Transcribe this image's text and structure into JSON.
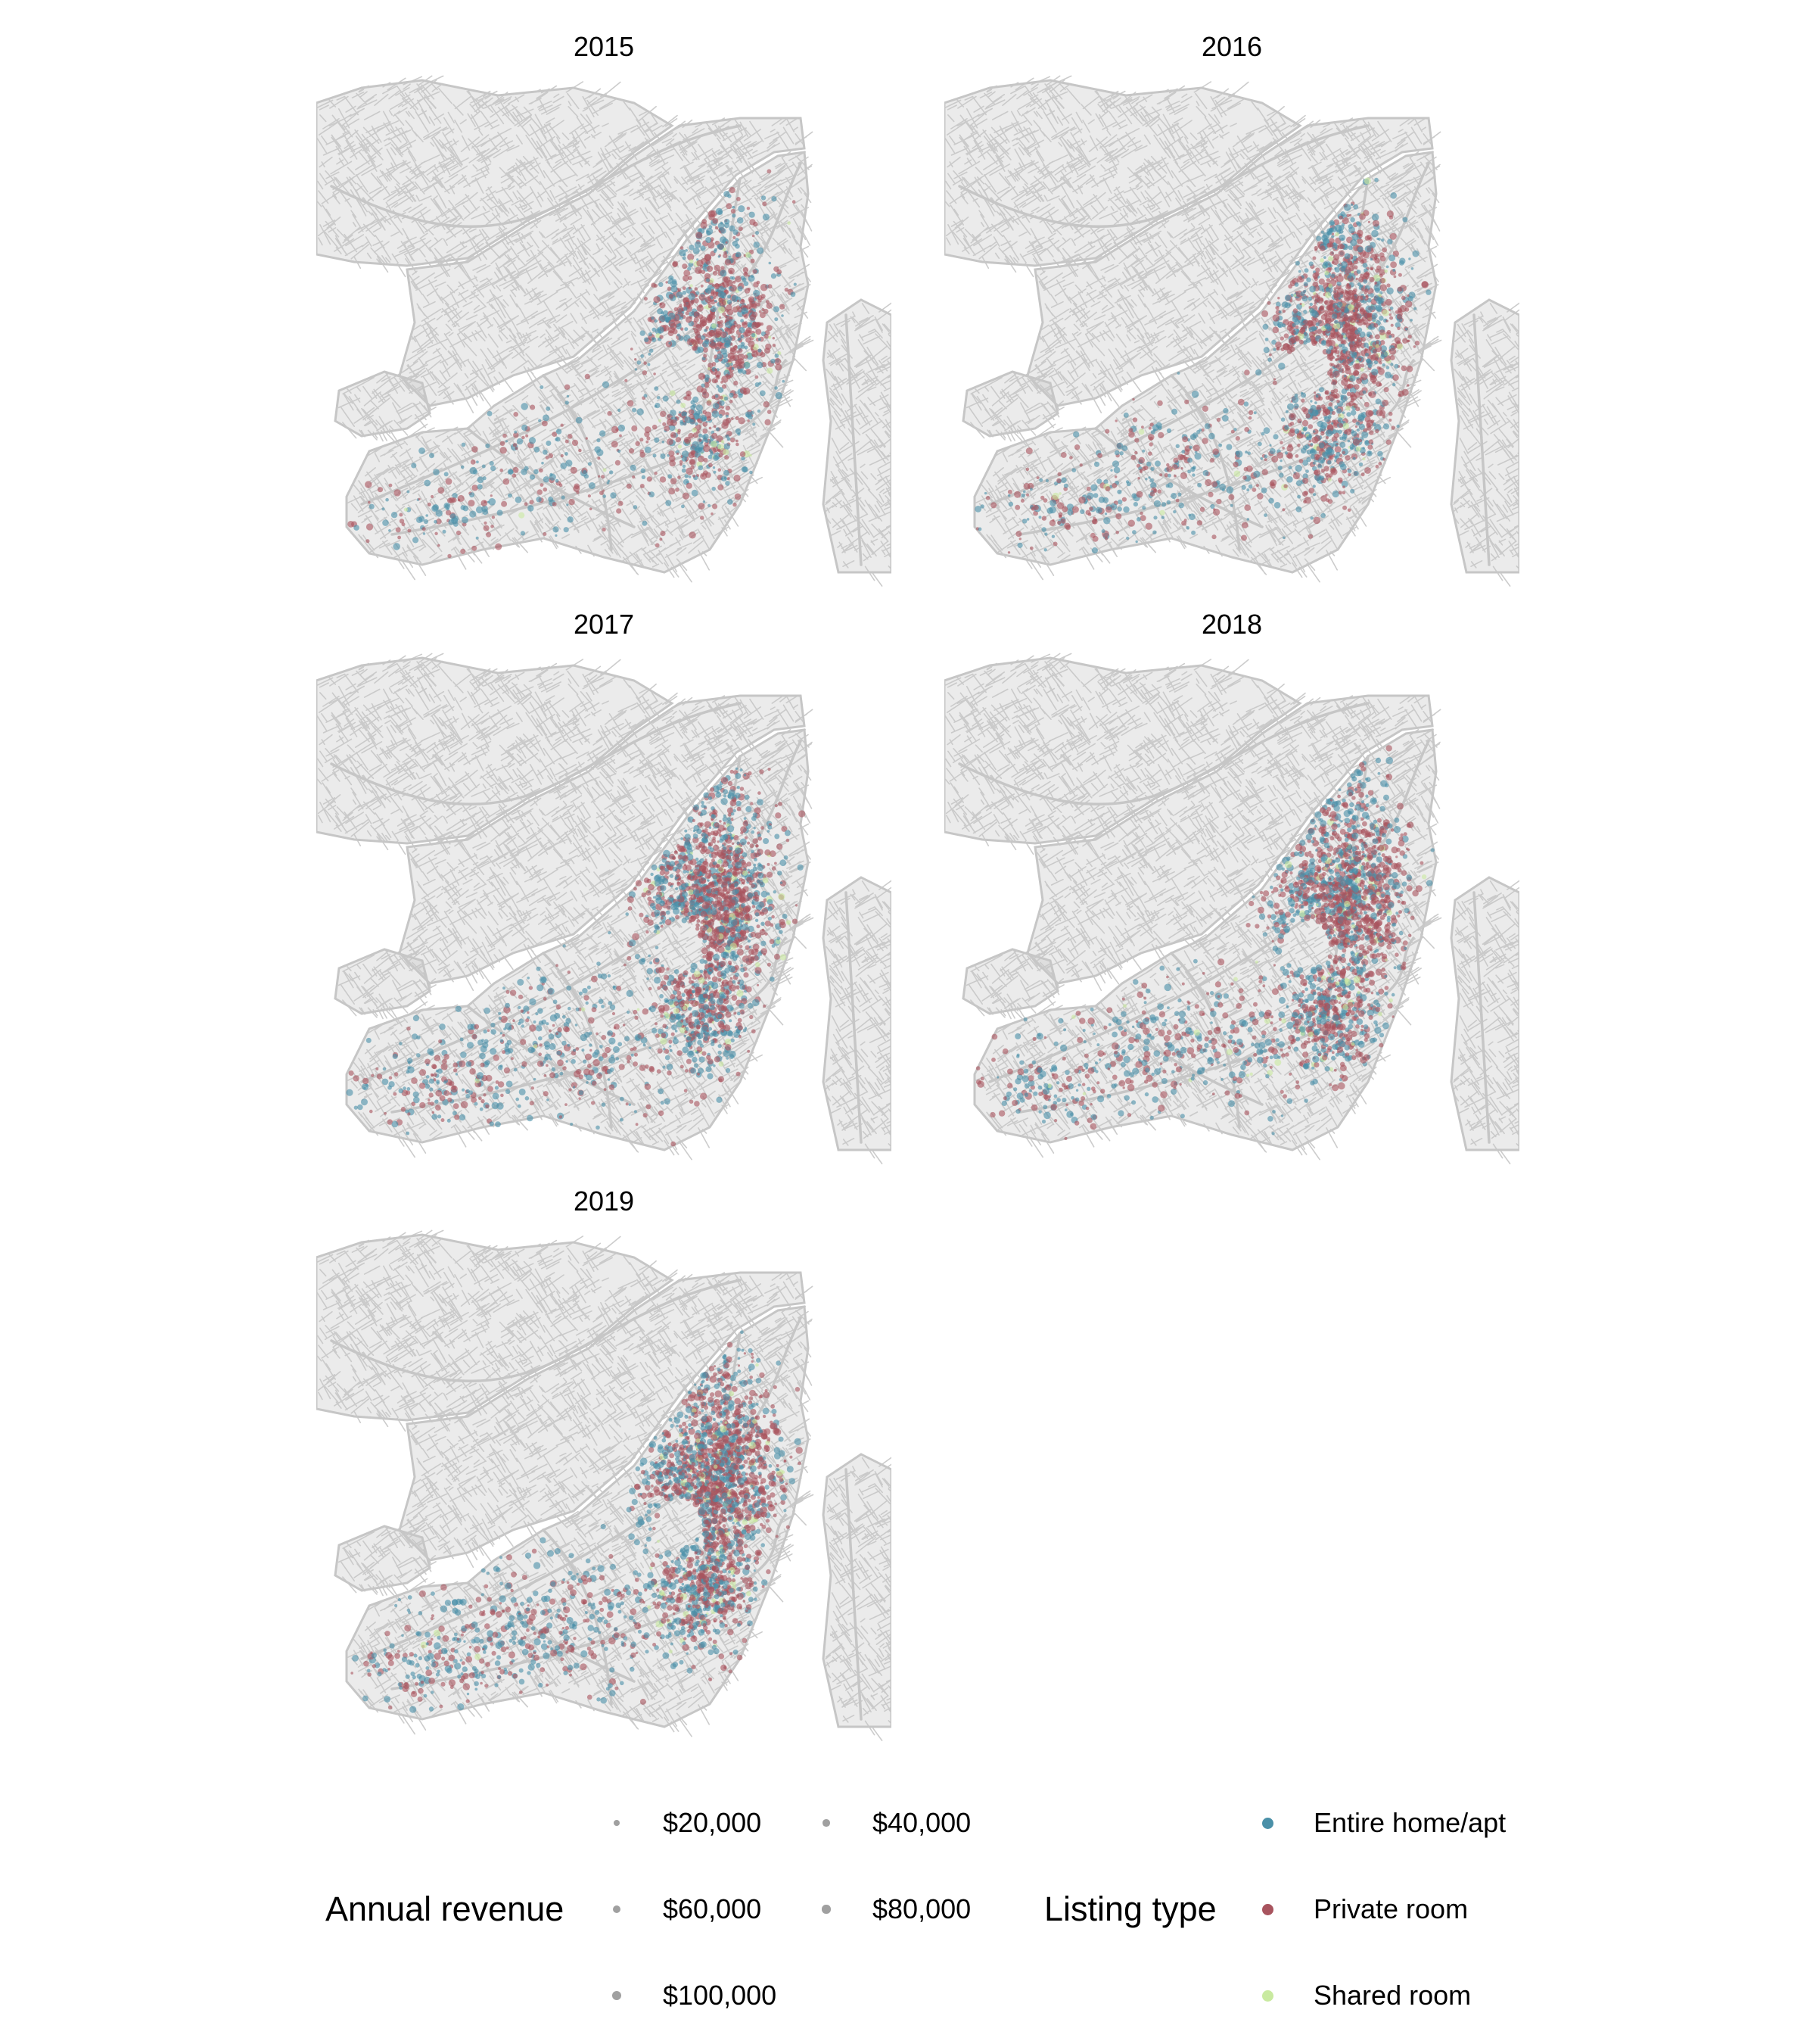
{
  "panels": [
    {
      "title": "2015",
      "intensity": 0.55
    },
    {
      "title": "2016",
      "intensity": 0.75
    },
    {
      "title": "2017",
      "intensity": 0.9
    },
    {
      "title": "2018",
      "intensity": 0.9
    },
    {
      "title": "2019",
      "intensity": 1.0
    }
  ],
  "legend": {
    "revenue": {
      "title": "Annual revenue",
      "items": [
        {
          "label": "$20,000",
          "value": 20000
        },
        {
          "label": "$40,000",
          "value": 40000
        },
        {
          "label": "$60,000",
          "value": 60000
        },
        {
          "label": "$80,000",
          "value": 80000
        },
        {
          "label": "$100,000",
          "value": 100000
        }
      ]
    },
    "listing_type": {
      "title": "Listing type",
      "items": [
        {
          "label": "Entire home/apt",
          "color": "#4A90A8"
        },
        {
          "label": "Private room",
          "color": "#A8545E"
        },
        {
          "label": "Shared room",
          "color": "#C9EAA0"
        }
      ]
    }
  },
  "colors": {
    "road": "#C6C6C6",
    "background": "#FFFFFF"
  }
}
